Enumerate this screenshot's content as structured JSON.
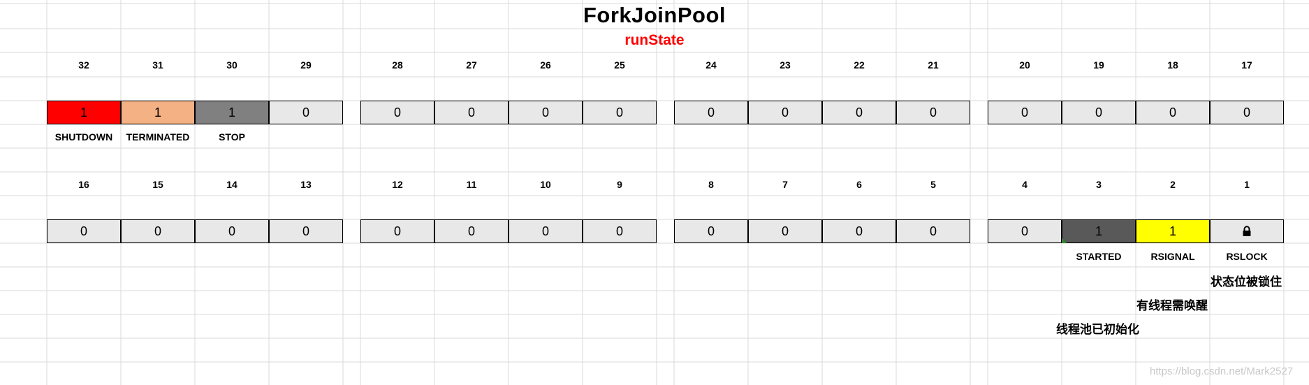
{
  "title": "ForkJoinPool",
  "subtitle": "runState",
  "row1": {
    "bits": [
      "32",
      "31",
      "30",
      "29",
      "28",
      "27",
      "26",
      "25",
      "24",
      "23",
      "22",
      "21",
      "20",
      "19",
      "18",
      "17"
    ],
    "values": [
      "1",
      "1",
      "1",
      "0",
      "0",
      "0",
      "0",
      "0",
      "0",
      "0",
      "0",
      "0",
      "0",
      "0",
      "0",
      "0"
    ],
    "labels": [
      "SHUTDOWN",
      "TERMINATED",
      "STOP"
    ]
  },
  "row2": {
    "bits": [
      "16",
      "15",
      "14",
      "13",
      "12",
      "11",
      "10",
      "9",
      "8",
      "7",
      "6",
      "5",
      "4",
      "3",
      "2",
      "1"
    ],
    "values": [
      "0",
      "0",
      "0",
      "0",
      "0",
      "0",
      "0",
      "0",
      "0",
      "0",
      "0",
      "0",
      "0",
      "1",
      "1",
      ""
    ],
    "labels": [
      "STARTED",
      "RSIGNAL",
      "RSLOCK"
    ]
  },
  "notes": {
    "rslock": "状态位被锁住",
    "rsignal": "有线程需唤醒",
    "started": "线程池已初始化"
  },
  "watermark": "https://blog.csdn.net/Mark2527",
  "icons": {
    "bit1": "lock-icon"
  },
  "colors": {
    "shutdown": "#ff0000",
    "terminated": "#f4b183",
    "stop": "#808080",
    "started": "#595959",
    "rsignal": "#ffff00",
    "default_cell": "#e8e8e8",
    "subtitle": "#ff0000"
  }
}
